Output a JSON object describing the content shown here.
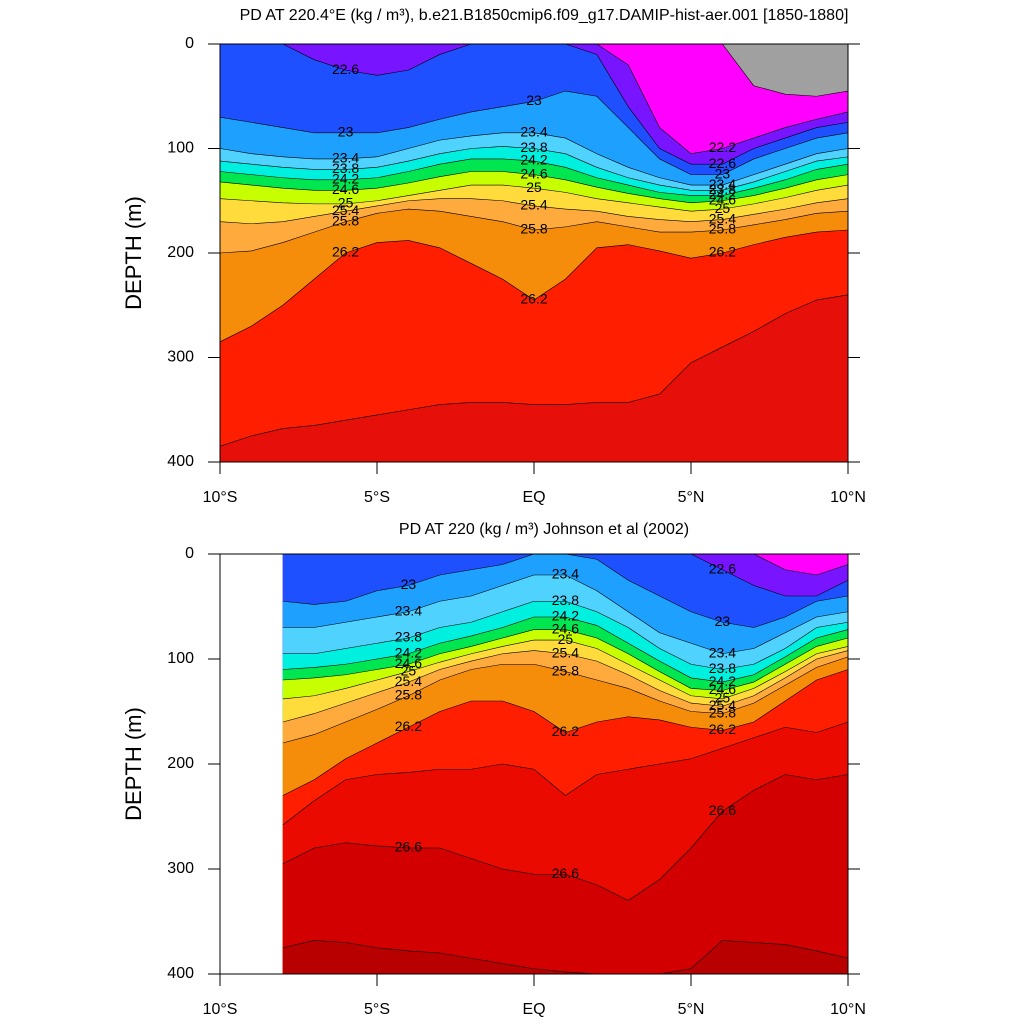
{
  "chart_data": [
    {
      "type": "contour",
      "title": "PD AT 220.4°E (kg / m³), b.e21.B1850cmip6.f09_g17.DAMIP-hist-aer.001 [1850-1880]",
      "y_label": "DEPTH (m)",
      "x": [
        -10,
        -9,
        -8,
        -7,
        -6,
        -5,
        -4,
        -3,
        -2,
        -1,
        0,
        1,
        2,
        3,
        4,
        5,
        6,
        7,
        8,
        9,
        10
      ],
      "xlim": [
        -10,
        10
      ],
      "ylim": [
        0,
        400
      ],
      "y_inverted": true,
      "background": "#a0a0a0",
      "xticks": [
        {
          "value": -10,
          "label": "10°S"
        },
        {
          "value": -5,
          "label": "5°S"
        },
        {
          "value": 0,
          "label": "EQ"
        },
        {
          "value": 5,
          "label": "5°N"
        },
        {
          "value": 10,
          "label": "10°N"
        }
      ],
      "yticks": [
        0,
        100,
        200,
        300,
        400
      ],
      "contours": [
        {
          "level": 21.8,
          "color": "#ff00ff",
          "labeled": true,
          "depth": [
            0,
            0,
            0,
            0,
            0,
            0,
            0,
            0,
            0,
            0,
            0,
            0,
            0,
            0,
            0,
            0,
            0,
            40,
            48,
            50,
            45
          ]
        },
        {
          "level": 22.2,
          "color": "#7814ff",
          "labeled": true,
          "depth": [
            0,
            0,
            0,
            0,
            0,
            0,
            0,
            0,
            0,
            0,
            0,
            0,
            0,
            20,
            80,
            105,
            100,
            90,
            80,
            72,
            65
          ]
        },
        {
          "level": 22.6,
          "color": "#1e50ff",
          "labeled": true,
          "depth": [
            0,
            0,
            0,
            15,
            25,
            30,
            25,
            10,
            0,
            0,
            0,
            0,
            10,
            60,
            100,
            115,
            115,
            100,
            90,
            80,
            75
          ]
        },
        {
          "level": 23,
          "color": "#1ea0ff",
          "labeled": true,
          "depth": [
            70,
            75,
            80,
            85,
            85,
            85,
            80,
            72,
            65,
            60,
            55,
            45,
            50,
            80,
            110,
            125,
            125,
            110,
            100,
            90,
            85
          ]
        },
        {
          "level": 23.4,
          "color": "#50d2ff",
          "labeled": true,
          "depth": [
            100,
            105,
            108,
            110,
            110,
            108,
            100,
            92,
            88,
            85,
            85,
            90,
            105,
            118,
            128,
            135,
            135,
            125,
            115,
            105,
            100
          ]
        },
        {
          "level": 23.8,
          "color": "#00f0e0",
          "labeled": true,
          "depth": [
            112,
            115,
            118,
            120,
            120,
            118,
            112,
            105,
            100,
            98,
            100,
            105,
            118,
            128,
            135,
            140,
            140,
            132,
            122,
            112,
            108
          ]
        },
        {
          "level": 24.2,
          "color": "#00e650",
          "labeled": true,
          "depth": [
            122,
            125,
            128,
            130,
            130,
            128,
            122,
            115,
            110,
            110,
            112,
            118,
            128,
            135,
            142,
            145,
            145,
            138,
            130,
            120,
            115
          ]
        },
        {
          "level": 24.6,
          "color": "#c8ff00",
          "labeled": true,
          "depth": [
            132,
            135,
            138,
            140,
            140,
            138,
            133,
            127,
            122,
            122,
            125,
            130,
            137,
            143,
            148,
            152,
            150,
            145,
            138,
            130,
            125
          ]
        },
        {
          "level": 25,
          "color": "#ffdc3c",
          "labeled": true,
          "depth": [
            148,
            150,
            152,
            153,
            153,
            150,
            145,
            140,
            135,
            135,
            138,
            142,
            148,
            152,
            156,
            160,
            158,
            153,
            147,
            140,
            135
          ]
        },
        {
          "level": 25.4,
          "color": "#ffaa3c",
          "labeled": true,
          "depth": [
            170,
            172,
            170,
            165,
            160,
            155,
            150,
            148,
            148,
            150,
            155,
            158,
            160,
            165,
            168,
            170,
            168,
            163,
            158,
            152,
            148
          ]
        },
        {
          "level": 25.8,
          "color": "#f58c0a",
          "labeled": true,
          "depth": [
            200,
            198,
            190,
            180,
            170,
            162,
            158,
            160,
            165,
            170,
            178,
            175,
            170,
            175,
            180,
            180,
            178,
            173,
            168,
            162,
            160
          ]
        },
        {
          "level": 26.2,
          "color": "#ff1e00",
          "labeled": true,
          "depth": [
            285,
            270,
            250,
            225,
            200,
            190,
            188,
            195,
            210,
            225,
            245,
            225,
            195,
            192,
            198,
            205,
            200,
            192,
            185,
            180,
            178
          ]
        },
        {
          "level": 26.6,
          "color": "#e60f0a",
          "labeled": false,
          "depth": [
            385,
            375,
            368,
            365,
            360,
            355,
            350,
            345,
            343,
            343,
            345,
            345,
            343,
            343,
            335,
            305,
            290,
            275,
            258,
            245,
            240
          ]
        }
      ]
    },
    {
      "type": "contour",
      "title": "PD AT 220 (kg / m³) Johnson et al (2002)",
      "y_label": "DEPTH (m)",
      "x": [
        -8,
        -7,
        -6,
        -5,
        -4,
        -3,
        -2,
        -1,
        0,
        1,
        2,
        3,
        4,
        5,
        6,
        7,
        8,
        9,
        10
      ],
      "xlim": [
        -10,
        10
      ],
      "ylim": [
        0,
        400
      ],
      "y_inverted": true,
      "background": "#a0a0a0",
      "xticks": [
        {
          "value": -10,
          "label": "10°S"
        },
        {
          "value": -5,
          "label": "5°S"
        },
        {
          "value": 0,
          "label": "EQ"
        },
        {
          "value": 5,
          "label": "5°N"
        },
        {
          "value": 10,
          "label": "10°N"
        }
      ],
      "yticks": [
        0,
        100,
        200,
        300,
        400
      ],
      "contours": [
        {
          "level": 21.8,
          "color": "#ff00ff",
          "labeled": false,
          "depth": [
            0,
            0,
            0,
            0,
            0,
            0,
            0,
            0,
            0,
            0,
            0,
            0,
            0,
            0,
            0,
            0,
            0,
            0,
            0
          ]
        },
        {
          "level": 22.2,
          "color": "#7814ff",
          "labeled": false,
          "depth": [
            0,
            0,
            0,
            0,
            0,
            0,
            0,
            0,
            0,
            0,
            0,
            0,
            0,
            0,
            0,
            0,
            15,
            20,
            10
          ]
        },
        {
          "level": 22.6,
          "color": "#1e50ff",
          "labeled": true,
          "depth": [
            0,
            0,
            0,
            0,
            0,
            0,
            0,
            0,
            0,
            0,
            0,
            0,
            0,
            0,
            15,
            30,
            40,
            40,
            25
          ]
        },
        {
          "level": 23,
          "color": "#1ea0ff",
          "labeled": true,
          "depth": [
            45,
            48,
            45,
            35,
            30,
            20,
            15,
            10,
            0,
            0,
            5,
            25,
            40,
            55,
            65,
            70,
            60,
            45,
            40
          ]
        },
        {
          "level": 23.4,
          "color": "#50d2ff",
          "labeled": true,
          "depth": [
            70,
            70,
            65,
            60,
            55,
            45,
            40,
            30,
            20,
            20,
            35,
            55,
            75,
            85,
            95,
            90,
            75,
            60,
            55
          ]
        },
        {
          "level": 23.8,
          "color": "#00f0e0",
          "labeled": true,
          "depth": [
            95,
            95,
            90,
            85,
            80,
            70,
            65,
            55,
            45,
            45,
            55,
            70,
            90,
            105,
            110,
            105,
            90,
            70,
            65
          ]
        },
        {
          "level": 24.2,
          "color": "#00e650",
          "labeled": true,
          "depth": [
            110,
            108,
            105,
            100,
            95,
            85,
            78,
            70,
            60,
            60,
            68,
            85,
            102,
            118,
            122,
            115,
            98,
            80,
            72
          ]
        },
        {
          "level": 24.6,
          "color": "#c8ff00",
          "labeled": true,
          "depth": [
            120,
            118,
            115,
            110,
            105,
            95,
            88,
            80,
            72,
            72,
            80,
            95,
            112,
            128,
            130,
            122,
            105,
            88,
            80
          ]
        },
        {
          "level": 25,
          "color": "#ffdc3c",
          "labeled": true,
          "depth": [
            138,
            135,
            128,
            120,
            112,
            103,
            95,
            88,
            82,
            82,
            90,
            105,
            120,
            135,
            138,
            128,
            112,
            95,
            88
          ]
        },
        {
          "level": 25.4,
          "color": "#ffaa3c",
          "labeled": true,
          "depth": [
            160,
            152,
            142,
            132,
            122,
            110,
            102,
            95,
            92,
            95,
            102,
            115,
            130,
            142,
            145,
            135,
            118,
            100,
            92
          ]
        },
        {
          "level": 25.8,
          "color": "#f58c0a",
          "labeled": true,
          "depth": [
            180,
            172,
            160,
            148,
            135,
            120,
            110,
            105,
            105,
            112,
            120,
            128,
            140,
            150,
            152,
            142,
            125,
            108,
            98
          ]
        },
        {
          "level": 26.2,
          "color": "#ff1e00",
          "labeled": true,
          "depth": [
            230,
            215,
            195,
            180,
            165,
            150,
            140,
            140,
            150,
            170,
            160,
            155,
            158,
            165,
            168,
            160,
            140,
            120,
            110
          ]
        },
        {
          "level": 26.4,
          "color": "#eb0a00",
          "labeled": false,
          "depth": [
            258,
            235,
            215,
            210,
            208,
            205,
            205,
            200,
            205,
            230,
            210,
            205,
            200,
            195,
            185,
            175,
            165,
            170,
            160
          ]
        },
        {
          "level": 26.6,
          "color": "#d20000",
          "labeled": true,
          "depth": [
            295,
            280,
            275,
            278,
            280,
            280,
            290,
            300,
            305,
            305,
            315,
            330,
            310,
            280,
            245,
            225,
            210,
            215,
            210
          ]
        },
        {
          "level": 26.8,
          "color": "#b90000",
          "labeled": false,
          "depth": [
            375,
            368,
            370,
            375,
            378,
            380,
            385,
            390,
            395,
            398,
            400,
            400,
            400,
            395,
            368,
            370,
            372,
            378,
            385
          ]
        }
      ]
    }
  ]
}
